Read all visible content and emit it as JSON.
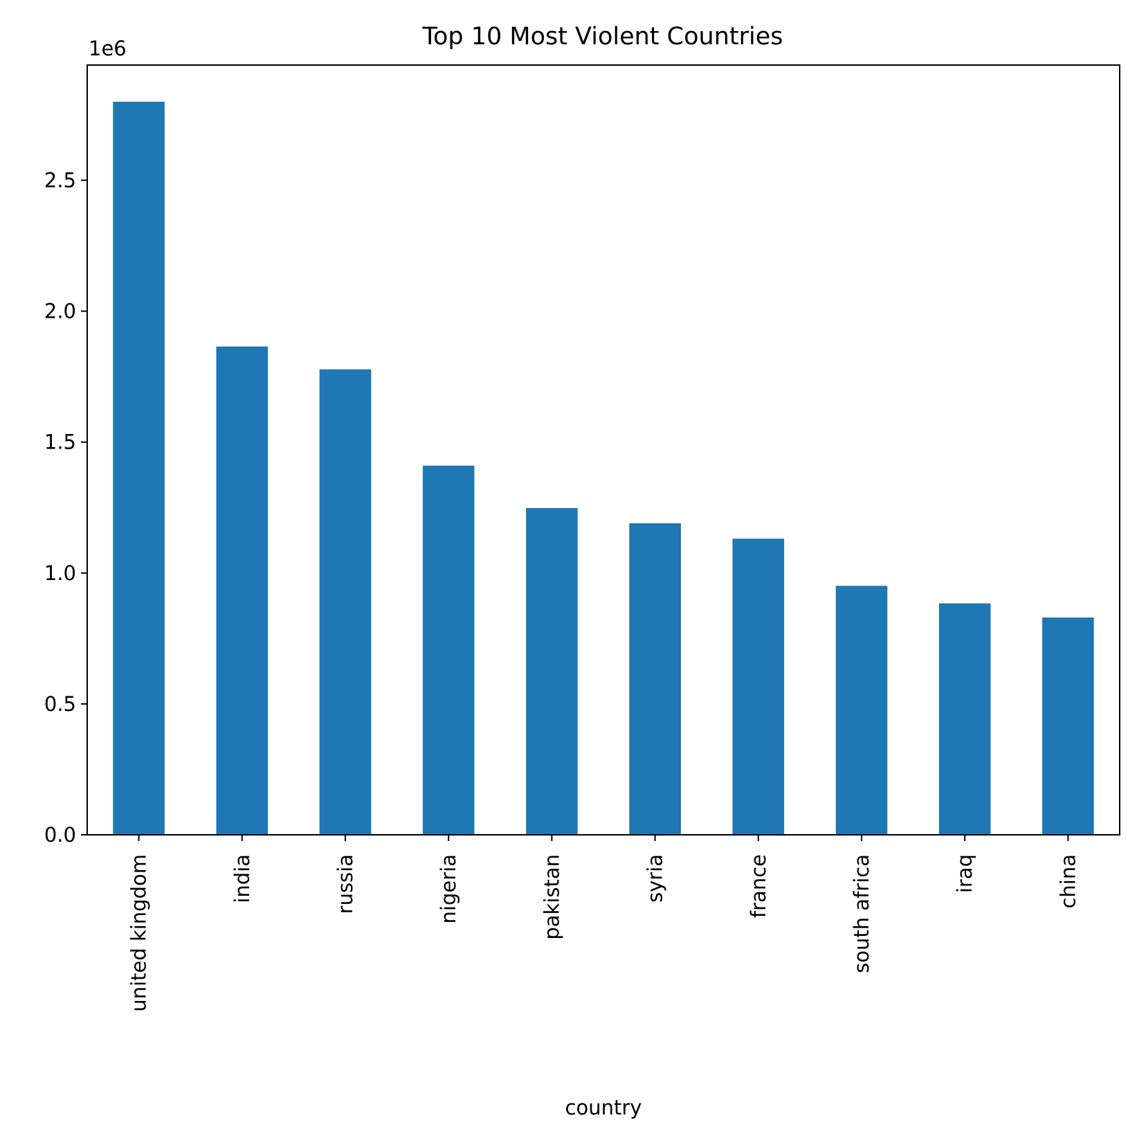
{
  "chart_data": {
    "type": "bar",
    "title": "Top 10 Most Violent Countries",
    "xlabel": "country",
    "ylabel": "",
    "y_offset_label": "1e6",
    "y_scale": 1000000,
    "categories": [
      "united kingdom",
      "india",
      "russia",
      "nigeria",
      "pakistan",
      "syria",
      "france",
      "south africa",
      "iraq",
      "china"
    ],
    "values": [
      2800000,
      1865000,
      1778000,
      1410000,
      1248000,
      1190000,
      1131000,
      951000,
      884000,
      830000
    ],
    "ylim": [
      0,
      2940000
    ],
    "yticks": [
      0,
      500000,
      1000000,
      1500000,
      2000000,
      2500000
    ],
    "ytick_labels": [
      "0.0",
      "0.5",
      "1.0",
      "1.5",
      "2.0",
      "2.5"
    ],
    "bar_color": "#1f77b4",
    "grid": false,
    "legend": "none"
  }
}
